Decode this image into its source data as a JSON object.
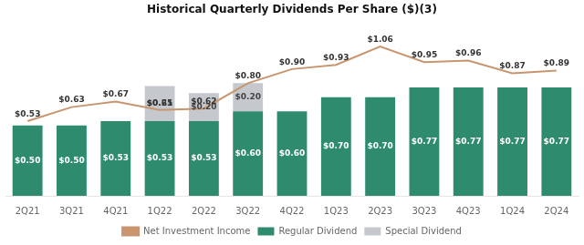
{
  "chart_data": {
    "type": "bar",
    "title": "Historical Quarterly Dividends Per Share ($)(3)",
    "categories": [
      "2Q21",
      "3Q21",
      "4Q21",
      "1Q22",
      "2Q22",
      "3Q22",
      "4Q22",
      "1Q23",
      "2Q23",
      "3Q23",
      "4Q23",
      "1Q24",
      "2Q24"
    ],
    "series": [
      {
        "name": "Regular Dividend",
        "type": "bar",
        "color": "#2e8b6e",
        "values": [
          0.5,
          0.5,
          0.53,
          0.53,
          0.53,
          0.6,
          0.6,
          0.7,
          0.7,
          0.77,
          0.77,
          0.77,
          0.77
        ],
        "value_labels": [
          "$0.50",
          "$0.50",
          "$0.53",
          "$0.53",
          "$0.53",
          "$0.60",
          "$0.60",
          "$0.70",
          "$0.70",
          "$0.77",
          "$0.77",
          "$0.77",
          "$0.77"
        ]
      },
      {
        "name": "Special Dividend",
        "type": "bar",
        "color": "#c5c8cc",
        "values": [
          0.0,
          0.0,
          0.0,
          0.25,
          0.2,
          0.2,
          0.0,
          0.0,
          0.0,
          0.0,
          0.0,
          0.0,
          0.0
        ],
        "value_labels": [
          null,
          null,
          null,
          "$0.25",
          "$0.20",
          "$0.20",
          null,
          null,
          null,
          null,
          null,
          null,
          null
        ]
      },
      {
        "name": "Net Investment Income",
        "type": "line",
        "color": "#c8956e",
        "marker": "none",
        "values": [
          0.53,
          0.63,
          0.67,
          0.61,
          0.62,
          0.8,
          0.9,
          0.93,
          1.06,
          0.95,
          0.96,
          0.87,
          0.89
        ],
        "value_labels": [
          "$0.53",
          "$0.63",
          "$0.67",
          "$0.61",
          "$0.62",
          "$0.80",
          "$0.90",
          "$0.93",
          "$1.06",
          "$0.95",
          "$0.96",
          "$0.87",
          "$0.89"
        ]
      }
    ],
    "stacked": true,
    "ylim": [
      0,
      1.22
    ],
    "grid": false,
    "legend": "bottom",
    "data_labels": true,
    "tick_labels": "x"
  }
}
